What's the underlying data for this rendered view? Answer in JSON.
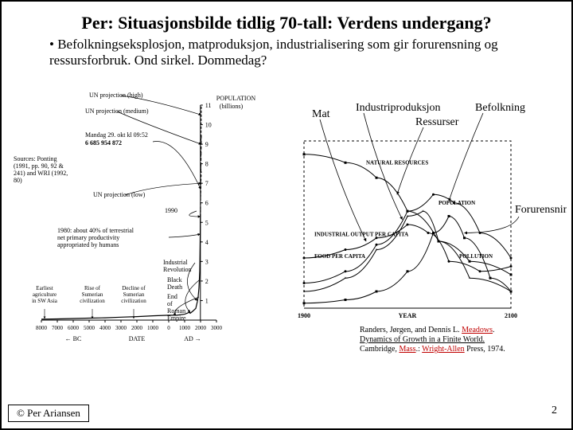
{
  "title": "Per: Situasjonsbilde tidlig 70-tall: Verdens undergang?",
  "bullet": "Befolkningseksplosjon, matproduksjon, industrialisering som gir forurensning og ressursforbruk. Ond sirkel. Dommedag?",
  "copyright": "© Per Ariansen",
  "page": "2",
  "left": {
    "yaxis_title1": "POPULATION",
    "yaxis_title2": "(billions)",
    "yTicks": [
      1,
      2,
      3,
      4,
      5,
      6,
      7,
      8,
      9,
      10,
      11
    ],
    "yRange": [
      0,
      11
    ],
    "xTicks": [
      -8000,
      -7000,
      -6000,
      -5000,
      -4000,
      -3000,
      -2000,
      -1000,
      0,
      1000,
      2000,
      3000
    ],
    "xTickLabels": [
      "8000",
      "7000",
      "6000",
      "5000",
      "4000",
      "3000",
      "2000",
      "1000",
      "0",
      "1000",
      "2000",
      "3000"
    ],
    "xRange": [
      -8000,
      3000
    ],
    "dateLine": {
      "bc": "BC",
      "date": "DATE",
      "ad": "AD"
    },
    "sources": "Sources: Ponting (1991, pp. 90, 92 & 241) and WRI (1992, 80)",
    "annotations": {
      "unHigh": "UN projection (high)",
      "unMed": "UN projection (medium)",
      "unLow": "UN projection (low)",
      "clock1": "Mandag 29. okt kl 09:52",
      "clock2": "6 685 954 872",
      "y1990": "1990",
      "note1980": "1980: about 40% of terrestrial net primary productivity appropriated by humans",
      "industrial": "Industrial Revolution",
      "blackDeath": "Black Death",
      "roman": "End of Roman Empire",
      "earliest": "Earliest agriculture in SW Asia",
      "sumRise": "Rise of Sumerian civilization",
      "sumDecl": "Decline of Sumerian civilization"
    },
    "solidLine": [
      [
        -8000,
        0.05
      ],
      [
        -7000,
        0.06
      ],
      [
        -6000,
        0.08
      ],
      [
        -5000,
        0.1
      ],
      [
        -4000,
        0.12
      ],
      [
        -3000,
        0.15
      ],
      [
        -2000,
        0.18
      ],
      [
        -1000,
        0.22
      ],
      [
        0,
        0.25
      ],
      [
        500,
        0.25
      ],
      [
        1000,
        0.3
      ],
      [
        1300,
        0.4
      ],
      [
        1350,
        0.35
      ],
      [
        1500,
        0.45
      ],
      [
        1700,
        0.6
      ],
      [
        1800,
        0.95
      ],
      [
        1850,
        1.2
      ],
      [
        1900,
        1.65
      ],
      [
        1950,
        2.5
      ],
      [
        1980,
        4.4
      ],
      [
        1990,
        5.3
      ]
    ],
    "projHigh": [
      [
        1990,
        5.3
      ],
      [
        2010,
        7.0
      ],
      [
        2030,
        9.2
      ],
      [
        2050,
        11.0
      ]
    ],
    "projMed": [
      [
        1990,
        5.3
      ],
      [
        2010,
        6.8
      ],
      [
        2030,
        8.2
      ],
      [
        2050,
        9.5
      ]
    ],
    "projLow": [
      [
        1990,
        5.3
      ],
      [
        2010,
        6.5
      ],
      [
        2030,
        7.2
      ],
      [
        2050,
        7.6
      ]
    ],
    "colors": {
      "line": "#000",
      "dash": "#000",
      "bg": "#fff",
      "axis": "#000",
      "grid": "#707070"
    }
  },
  "right": {
    "xRange": [
      1900,
      2100
    ],
    "xTicks": [
      1900,
      2100
    ],
    "internalLabels": {
      "nat": "NATURAL RESOURCES",
      "pop": "POPULATION",
      "ind": "INDUSTRIAL OUTPUT PER CAPITA",
      "food": "FOOD PER CAPITA",
      "pol": "POLLUTION",
      "year": "YEAR"
    },
    "extLabels": {
      "mat": "Mat",
      "ind": "Industriproduksjon",
      "bef": "Befolkning",
      "res": "Ressurser",
      "for": "Forurensning"
    },
    "series": {
      "resources": [
        [
          1900,
          0.92
        ],
        [
          1940,
          0.87
        ],
        [
          1970,
          0.78
        ],
        [
          2000,
          0.58
        ],
        [
          2030,
          0.4
        ],
        [
          2060,
          0.28
        ],
        [
          2100,
          0.2
        ]
      ],
      "population": [
        [
          1900,
          0.15
        ],
        [
          1940,
          0.22
        ],
        [
          1970,
          0.38
        ],
        [
          2000,
          0.58
        ],
        [
          2025,
          0.68
        ],
        [
          2045,
          0.63
        ],
        [
          2070,
          0.45
        ],
        [
          2100,
          0.3
        ]
      ],
      "industrial": [
        [
          1900,
          0.1
        ],
        [
          1940,
          0.18
        ],
        [
          1970,
          0.35
        ],
        [
          2000,
          0.55
        ],
        [
          2015,
          0.58
        ],
        [
          2030,
          0.4
        ],
        [
          2060,
          0.18
        ],
        [
          2100,
          0.1
        ]
      ],
      "food": [
        [
          1900,
          0.3
        ],
        [
          1940,
          0.35
        ],
        [
          1970,
          0.42
        ],
        [
          2000,
          0.5
        ],
        [
          2020,
          0.45
        ],
        [
          2040,
          0.28
        ],
        [
          2070,
          0.22
        ],
        [
          2100,
          0.25
        ]
      ],
      "pollution": [
        [
          1900,
          0.03
        ],
        [
          1940,
          0.05
        ],
        [
          1970,
          0.1
        ],
        [
          2000,
          0.22
        ],
        [
          2025,
          0.45
        ],
        [
          2040,
          0.55
        ],
        [
          2055,
          0.42
        ],
        [
          2080,
          0.18
        ],
        [
          2100,
          0.1
        ]
      ]
    },
    "colors": {
      "line": "#000",
      "bg": "#fff",
      "axis": "#000"
    },
    "citation": {
      "l1a": "Randers, Jørgen, and Dennis L. ",
      "l1b": "Meadows",
      "l2a": "Dynamics of Growth in a Finite World",
      "l3a": "Cambridge, ",
      "l3b": "Mass",
      "l3c": ".: ",
      "l3d": "Wright-Allen",
      "l3e": " Press, 1974."
    }
  }
}
